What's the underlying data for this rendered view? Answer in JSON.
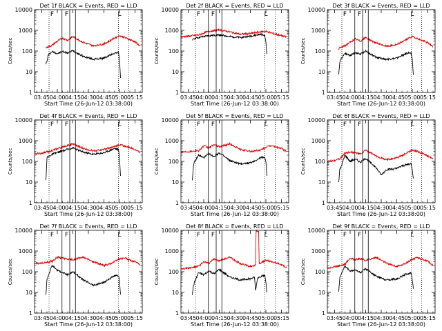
{
  "figure": {
    "ylabel": "Counts/sec",
    "xlabel": "Start Time (26-Jun-12 03:38:00)",
    "series_colors": {
      "events": "#000000",
      "lld": "#e00000"
    },
    "title_suffix": "BLACK = Events, RED = LLD"
  },
  "chart_data": [
    {
      "type": "line",
      "title": "Det 1f BLACK = Events, RED = LLD",
      "xlabel": "Start Time (26-Jun-12 03:38:00)",
      "ylabel": "Counts/sec",
      "yscale": "log",
      "ylim": [
        1,
        10000
      ],
      "xlim": [
        -7,
        97
      ],
      "xticks": [
        "03:45",
        "04:00",
        "04:15",
        "04:30",
        "04:45",
        "05:00",
        "05:15"
      ],
      "yticks": [
        "1",
        "10",
        "100",
        "1000",
        "10000"
      ],
      "vlines_solid": [
        19.5,
        27,
        32.5
      ],
      "vlines_dotted": [
        7,
        74,
        84
      ],
      "annotations": [
        {
          "text": "F",
          "x": 10
        },
        {
          "text": "F",
          "x": 24
        },
        {
          "text": "L",
          "x": 75
        }
      ],
      "series": [
        {
          "x": [
            4,
            5,
            6,
            7,
            10,
            15,
            20,
            25,
            30,
            40,
            50,
            60,
            65,
            70,
            74,
            75,
            76
          ],
          "y": [
            25,
            30,
            60,
            70,
            95,
            75,
            95,
            80,
            105,
            55,
            40,
            45,
            60,
            80,
            85,
            45,
            5
          ]
        },
        {
          "x": [
            4,
            5,
            10,
            15,
            20,
            25,
            30,
            40,
            50,
            60,
            65,
            70,
            75,
            80,
            90,
            95
          ],
          "y": [
            140,
            150,
            190,
            300,
            420,
            330,
            500,
            260,
            180,
            220,
            300,
            420,
            550,
            450,
            280,
            170
          ]
        }
      ]
    },
    {
      "type": "line",
      "title": "Det 2f BLACK = Events, RED = LLD",
      "xlabel": "Start Time (26-Jun-12 03:38:00)",
      "ylabel": "Counts/sec",
      "yscale": "log",
      "ylim": [
        1,
        10000
      ],
      "xlim": [
        -7,
        97
      ],
      "xticks": [
        "03:45",
        "04:00",
        "04:15",
        "04:30",
        "04:45",
        "05:00",
        "05:15"
      ],
      "yticks": [
        "1",
        "10",
        "100",
        "1000",
        "10000"
      ],
      "vlines_solid": [
        19.5,
        27,
        32.5
      ],
      "vlines_dotted": [
        7,
        74,
        84
      ],
      "annotations": [
        {
          "text": "F",
          "x": 10
        },
        {
          "text": "F",
          "x": 24
        },
        {
          "text": "L",
          "x": 75
        }
      ],
      "series": [
        {
          "x": [
            4,
            5,
            10,
            20,
            30,
            40,
            50,
            60,
            65,
            70,
            74,
            75,
            76
          ],
          "y": [
            300,
            400,
            450,
            550,
            600,
            500,
            450,
            520,
            580,
            650,
            550,
            250,
            70
          ]
        },
        {
          "x": [
            -7,
            0,
            10,
            20,
            30,
            40,
            50,
            60,
            70,
            75,
            80,
            90,
            95
          ],
          "y": [
            480,
            520,
            600,
            900,
            1050,
            850,
            650,
            700,
            850,
            900,
            750,
            550,
            480
          ]
        }
      ]
    },
    {
      "type": "line",
      "title": "Det 3f BLACK = Events, RED = LLD",
      "xlabel": "Start Time (26-Jun-12 03:38:00)",
      "ylabel": "Counts/sec",
      "yscale": "log",
      "ylim": [
        1,
        10000
      ],
      "xlim": [
        -7,
        97
      ],
      "xticks": [
        "03:45",
        "04:00",
        "04:15",
        "04:30",
        "04:45",
        "05:00",
        "05:15"
      ],
      "yticks": [
        "1",
        "10",
        "100",
        "1000",
        "10000"
      ],
      "vlines_solid": [
        19.5,
        27,
        32.5
      ],
      "vlines_dotted": [
        7,
        74,
        84
      ],
      "annotations": [
        {
          "text": "F",
          "x": 10
        },
        {
          "text": "F",
          "x": 24
        },
        {
          "text": "L",
          "x": 75
        }
      ],
      "series": [
        {
          "x": [
            4,
            5,
            6,
            10,
            15,
            20,
            25,
            30,
            40,
            50,
            60,
            65,
            70,
            74,
            75,
            76
          ],
          "y": [
            7,
            30,
            40,
            80,
            60,
            85,
            70,
            100,
            50,
            40,
            45,
            60,
            80,
            80,
            40,
            7
          ]
        },
        {
          "x": [
            4,
            5,
            10,
            15,
            20,
            25,
            30,
            40,
            50,
            60,
            65,
            70,
            75,
            80,
            90,
            95
          ],
          "y": [
            120,
            140,
            180,
            270,
            380,
            300,
            450,
            240,
            170,
            200,
            280,
            380,
            500,
            400,
            250,
            160
          ]
        }
      ]
    },
    {
      "type": "line",
      "title": "Det 4f BLACK = Events, RED = LLD",
      "xlabel": "Start Time (26-Jun-12 03:38:00)",
      "ylabel": "Counts/sec",
      "yscale": "log",
      "ylim": [
        1,
        10000
      ],
      "xlim": [
        -7,
        97
      ],
      "xticks": [
        "03:45",
        "04:00",
        "04:15",
        "04:30",
        "04:45",
        "05:00",
        "05:15"
      ],
      "yticks": [
        "1",
        "10",
        "100",
        "1000",
        "10000"
      ],
      "vlines_solid": [
        19.5,
        27,
        32.5
      ],
      "vlines_dotted": [
        7,
        74,
        84
      ],
      "annotations": [
        {
          "text": "F",
          "x": 10
        },
        {
          "text": "F",
          "x": 24
        },
        {
          "text": "L",
          "x": 75
        }
      ],
      "series": [
        {
          "x": [
            4,
            5,
            10,
            20,
            30,
            40,
            50,
            60,
            65,
            70,
            74,
            75,
            76
          ],
          "y": [
            12,
            150,
            220,
            320,
            450,
            280,
            220,
            260,
            330,
            420,
            380,
            150,
            20
          ]
        },
        {
          "x": [
            -7,
            0,
            10,
            20,
            30,
            40,
            50,
            60,
            70,
            75,
            80,
            90,
            95
          ],
          "y": [
            230,
            250,
            330,
            500,
            700,
            420,
            320,
            380,
            500,
            650,
            550,
            380,
            270
          ]
        }
      ]
    },
    {
      "type": "line",
      "title": "Det 5f BLACK = Events, RED = LLD",
      "xlabel": "Start Time (26-Jun-12 03:38:00)",
      "ylabel": "Counts/sec",
      "yscale": "log",
      "ylim": [
        1,
        10000
      ],
      "xlim": [
        -7,
        97
      ],
      "xticks": [
        "03:45",
        "04:00",
        "04:15",
        "04:30",
        "04:45",
        "05:00",
        "05:15"
      ],
      "yticks": [
        "1",
        "10",
        "100",
        "1000",
        "10000"
      ],
      "vlines_solid": [
        19.5,
        27,
        32.5
      ],
      "vlines_dotted": [
        7,
        74,
        84
      ],
      "annotations": [
        {
          "text": "F",
          "x": 10
        },
        {
          "text": "F",
          "x": 24
        },
        {
          "text": "L",
          "x": 75
        }
      ],
      "series": [
        {
          "x": [
            4,
            5,
            6,
            10,
            15,
            20,
            25,
            30,
            40,
            50,
            60,
            65,
            70,
            74,
            75,
            76
          ],
          "y": [
            12,
            60,
            90,
            200,
            150,
            230,
            170,
            260,
            110,
            75,
            85,
            110,
            150,
            160,
            90,
            20
          ]
        },
        {
          "x": [
            -7,
            0,
            10,
            15,
            20,
            25,
            30,
            40,
            50,
            60,
            70,
            75,
            80,
            90,
            95
          ],
          "y": [
            280,
            300,
            330,
            550,
            450,
            650,
            500,
            700,
            380,
            300,
            350,
            480,
            580,
            420,
            300
          ]
        }
      ]
    },
    {
      "type": "line",
      "title": "Det 6f BLACK = Events, RED = LLD",
      "xlabel": "Start Time (26-Jun-12 03:38:00)",
      "ylabel": "Counts/sec",
      "yscale": "log",
      "ylim": [
        1,
        10000
      ],
      "xlim": [
        -7,
        97
      ],
      "xticks": [
        "03:45",
        "04:00",
        "04:15",
        "04:30",
        "04:45",
        "05:00",
        "05:15"
      ],
      "yticks": [
        "1",
        "10",
        "100",
        "1000",
        "10000"
      ],
      "vlines_solid": [
        19.5,
        27,
        32.5
      ],
      "vlines_dotted": [
        7,
        74,
        84
      ],
      "annotations": [
        {
          "text": "F",
          "x": 10
        },
        {
          "text": "F",
          "x": 24
        },
        {
          "text": "L",
          "x": 75
        }
      ],
      "series": [
        {
          "x": [
            4,
            5,
            6,
            10,
            15,
            20,
            25,
            30,
            40,
            45,
            50,
            60,
            65,
            70,
            74,
            75,
            76
          ],
          "y": [
            10,
            40,
            50,
            200,
            100,
            130,
            90,
            140,
            50,
            22,
            40,
            45,
            60,
            70,
            80,
            40,
            15
          ]
        },
        {
          "x": [
            -7,
            0,
            5,
            10,
            15,
            20,
            25,
            30,
            40,
            50,
            60,
            65,
            70,
            75,
            80,
            90,
            95
          ],
          "y": [
            100,
            110,
            130,
            250,
            280,
            260,
            220,
            350,
            180,
            120,
            150,
            190,
            260,
            350,
            300,
            180,
            130
          ]
        }
      ]
    },
    {
      "type": "line",
      "title": "Det 7f BLACK = Events, RED = LLD",
      "xlabel": "Start Time (26-Jun-12 03:38:00)",
      "ylabel": "Counts/sec",
      "yscale": "log",
      "ylim": [
        1,
        10000
      ],
      "xlim": [
        -7,
        97
      ],
      "xticks": [
        "03:45",
        "04:00",
        "04:15",
        "04:30",
        "04:45",
        "05:00",
        "05:15"
      ],
      "yticks": [
        "1",
        "10",
        "100",
        "1000",
        "10000"
      ],
      "vlines_solid": [
        19.5,
        27,
        32.5
      ],
      "vlines_dotted": [
        7,
        74,
        84
      ],
      "annotations": [
        {
          "text": "F",
          "x": 10
        },
        {
          "text": "F",
          "x": 24
        },
        {
          "text": "L",
          "x": 75
        }
      ],
      "series": [
        {
          "x": [
            4,
            5,
            6,
            10,
            15,
            20,
            25,
            30,
            40,
            50,
            60,
            65,
            70,
            74,
            75,
            76
          ],
          "y": [
            8,
            40,
            60,
            200,
            120,
            90,
            70,
            100,
            40,
            22,
            30,
            45,
            60,
            65,
            40,
            8
          ]
        },
        {
          "x": [
            -7,
            0,
            10,
            15,
            20,
            25,
            30,
            40,
            50,
            60,
            65,
            70,
            75,
            80,
            90,
            95
          ],
          "y": [
            250,
            260,
            320,
            500,
            450,
            400,
            380,
            500,
            300,
            200,
            230,
            300,
            420,
            450,
            300,
            220
          ]
        }
      ]
    },
    {
      "type": "line",
      "title": "Det 8f BLACK = Events, RED = LLD",
      "xlabel": "Start Time (26-Jun-12 03:38:00)",
      "ylabel": "Counts/sec",
      "yscale": "log",
      "ylim": [
        1,
        10000
      ],
      "xlim": [
        -7,
        97
      ],
      "xticks": [
        "03:45",
        "04:00",
        "04:15",
        "04:30",
        "04:45",
        "05:00",
        "05:15"
      ],
      "yticks": [
        "1",
        "10",
        "100",
        "1000",
        "10000"
      ],
      "vlines_solid": [
        19.5,
        27,
        32.5
      ],
      "vlines_dotted": [
        7,
        74,
        84
      ],
      "annotations": [
        {
          "text": "F",
          "x": 10
        },
        {
          "text": "F",
          "x": 24
        },
        {
          "text": "L",
          "x": 75
        }
      ],
      "series": [
        {
          "x": [
            4,
            5,
            6,
            10,
            15,
            20,
            25,
            30,
            40,
            50,
            60,
            64,
            65,
            66,
            67,
            70,
            74,
            75,
            76
          ],
          "y": [
            8,
            20,
            30,
            90,
            70,
            110,
            80,
            130,
            55,
            40,
            45,
            55,
            12,
            25,
            50,
            60,
            65,
            30,
            10
          ]
        },
        {
          "x": [
            -7,
            0,
            10,
            15,
            20,
            25,
            30,
            40,
            50,
            60,
            64,
            65,
            65.5,
            68,
            68.5,
            70,
            75,
            80,
            90,
            95
          ],
          "y": [
            140,
            150,
            180,
            300,
            250,
            420,
            330,
            500,
            250,
            180,
            200,
            220,
            9000,
            9000,
            250,
            270,
            350,
            320,
            220,
            160
          ]
        }
      ]
    },
    {
      "type": "line",
      "title": "Det 9f BLACK = Events, RED = LLD",
      "xlabel": "Start Time (26-Jun-12 03:38:00)",
      "ylabel": "Counts/sec",
      "yscale": "log",
      "ylim": [
        1,
        10000
      ],
      "xlim": [
        -7,
        97
      ],
      "xticks": [
        "03:45",
        "04:00",
        "04:15",
        "04:30",
        "04:45",
        "05:00",
        "05:15"
      ],
      "yticks": [
        "1",
        "10",
        "100",
        "1000",
        "10000"
      ],
      "vlines_solid": [
        19.5,
        27,
        32.5
      ],
      "vlines_dotted": [
        7,
        74,
        84
      ],
      "annotations": [
        {
          "text": "F",
          "x": 10
        },
        {
          "text": "F",
          "x": 24
        },
        {
          "text": "L",
          "x": 75
        }
      ],
      "series": [
        {
          "x": [
            4,
            5,
            6,
            10,
            15,
            20,
            25,
            30,
            40,
            50,
            60,
            65,
            70,
            74,
            75,
            76
          ],
          "y": [
            12,
            50,
            70,
            180,
            110,
            120,
            90,
            140,
            60,
            40,
            45,
            60,
            80,
            85,
            40,
            15
          ]
        },
        {
          "x": [
            -7,
            0,
            10,
            15,
            20,
            25,
            30,
            40,
            50,
            60,
            65,
            70,
            75,
            80,
            90,
            95
          ],
          "y": [
            150,
            170,
            230,
            450,
            380,
            420,
            350,
            500,
            260,
            180,
            210,
            280,
            400,
            480,
            320,
            200
          ]
        }
      ]
    }
  ]
}
